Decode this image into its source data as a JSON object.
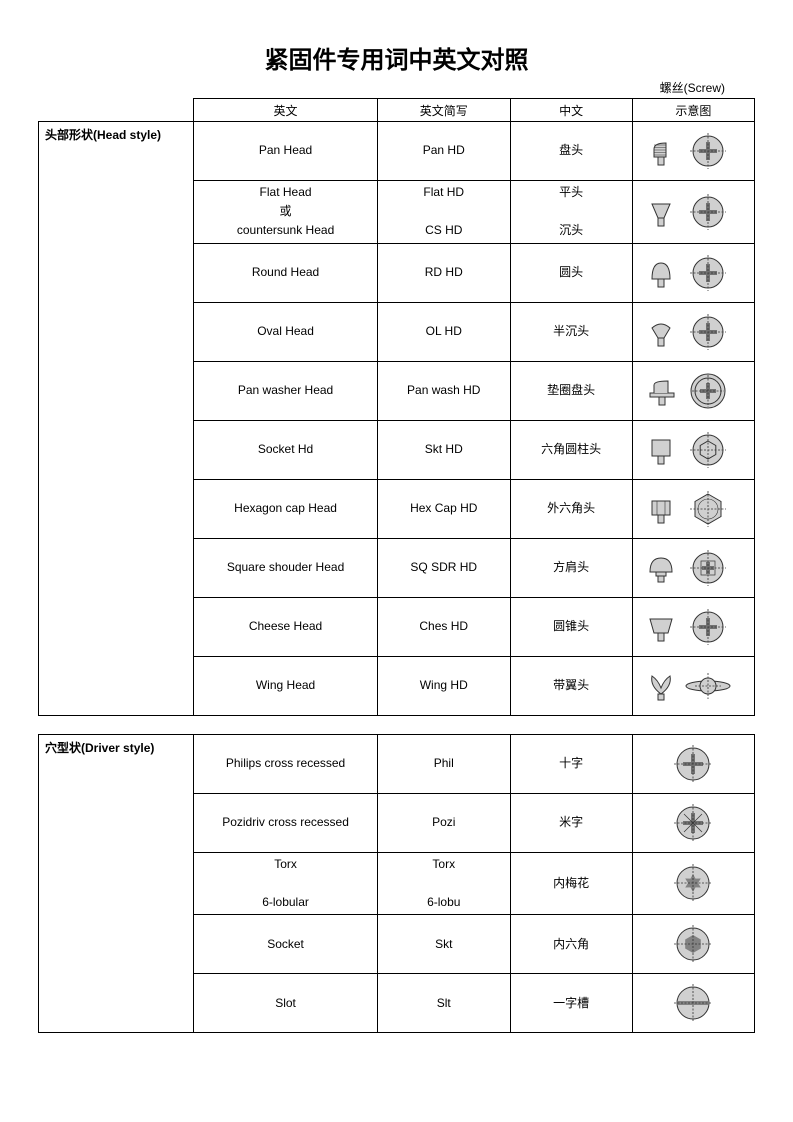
{
  "title": "紧固件专用词中英文对照",
  "top_label": "螺丝(Screw)",
  "headers": {
    "en": "英文",
    "abbr": "英文简写",
    "cn": "中文",
    "diagram": "示意图"
  },
  "sections": [
    {
      "category": "头部形状(Head style)",
      "rows": [
        {
          "en": "Pan Head",
          "abbr": "Pan HD",
          "cn": "盘头",
          "icon": "pan-head"
        },
        {
          "en": "Flat Head<br>或<br>countersunk Head",
          "abbr": "Flat HD<br><br>CS HD",
          "cn": "平头<br><br>沉头",
          "icon": "flat-head"
        },
        {
          "en": "Round Head",
          "abbr": "RD HD",
          "cn": "圆头",
          "icon": "round-head"
        },
        {
          "en": "Oval Head",
          "abbr": "OL HD",
          "cn": "半沉头",
          "icon": "oval-head"
        },
        {
          "en": "Pan washer Head",
          "abbr": "Pan wash HD",
          "cn": "垫圈盘头",
          "icon": "pan-washer-head"
        },
        {
          "en": "Socket Hd",
          "abbr": "Skt HD",
          "cn": "六角圆柱头",
          "icon": "socket-head"
        },
        {
          "en": "Hexagon cap Head",
          "abbr": "Hex Cap HD",
          "cn": "外六角头",
          "icon": "hex-cap-head"
        },
        {
          "en": "Square shouder Head",
          "abbr": "SQ SDR HD",
          "cn": "方肩头",
          "icon": "square-shoulder-head"
        },
        {
          "en": "Cheese Head",
          "abbr": "Ches HD",
          "cn": "圆锥头",
          "icon": "cheese-head"
        },
        {
          "en": "Wing Head",
          "abbr": "Wing HD",
          "cn": "带翼头",
          "icon": "wing-head"
        }
      ]
    },
    {
      "category": "穴型状(Driver style)",
      "rows": [
        {
          "en": "Philips cross recessed",
          "abbr": "Phil",
          "cn": "十字",
          "icon": "philips"
        },
        {
          "en": "Pozidriv cross recessed",
          "abbr": "Pozi",
          "cn": "米字",
          "icon": "pozidriv"
        },
        {
          "en": "Torx<br><br>6-lobular",
          "abbr": "Torx<br><br>6-lobu",
          "cn": "内梅花",
          "icon": "torx"
        },
        {
          "en": "Socket",
          "abbr": "Skt",
          "cn": "内六角",
          "icon": "socket-drive"
        },
        {
          "en": "Slot",
          "abbr": "Slt",
          "cn": "一字槽",
          "icon": "slot"
        }
      ]
    }
  ],
  "colors": {
    "fill": "#d0d0d0",
    "stroke": "#333333",
    "bg": "#ffffff"
  }
}
